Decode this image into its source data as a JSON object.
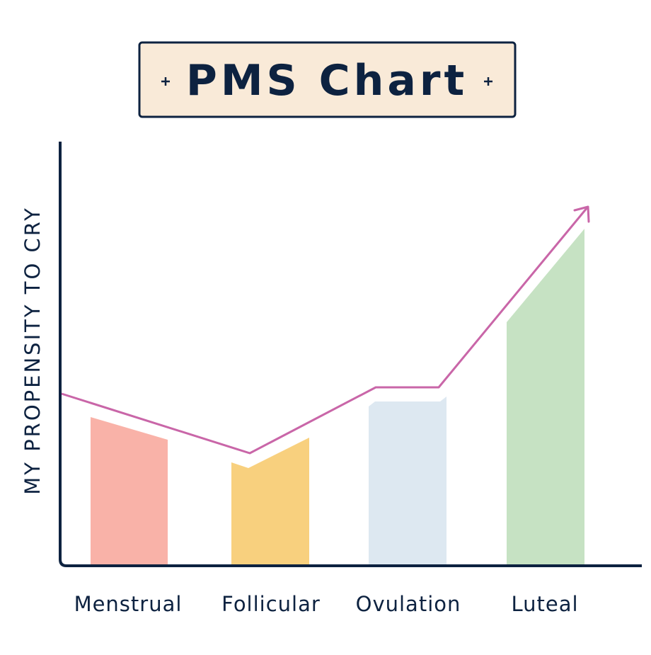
{
  "chart_data": {
    "title": "PMS Chart",
    "y_axis_label": "MY PROPENSITY TO CRY",
    "categories": [
      "Menstrual",
      "Follicular",
      "Ovulation",
      "Luteal"
    ]
  }
}
